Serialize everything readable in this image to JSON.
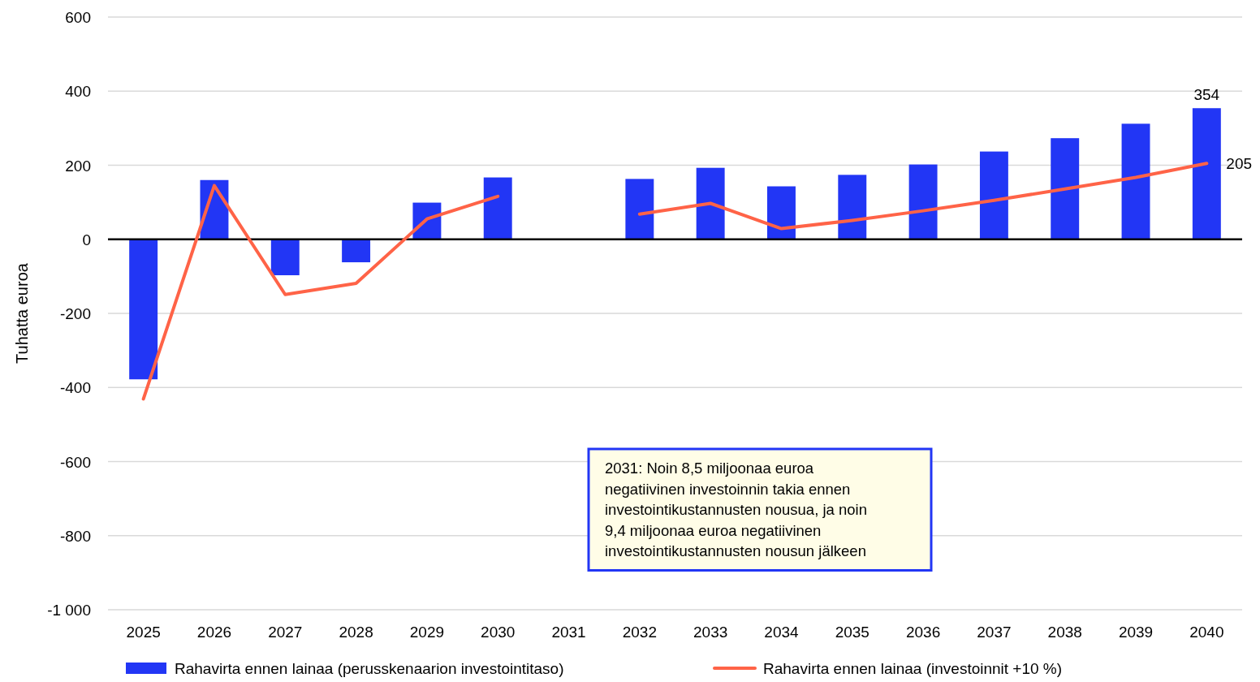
{
  "chart_data": {
    "type": "bar",
    "ylabel": "Tuhatta euroa",
    "categories": [
      "2025",
      "2026",
      "2027",
      "2028",
      "2029",
      "2030",
      "2031",
      "2032",
      "2033",
      "2034",
      "2035",
      "2036",
      "2037",
      "2038",
      "2039",
      "2040"
    ],
    "series": [
      {
        "name": "Rahavirta ennen lainaa (perusskenaarion investointitaso)",
        "color": "#2236f5",
        "values": [
          -378,
          160,
          -97,
          -62,
          99,
          167,
          null,
          163,
          193,
          143,
          174,
          202,
          237,
          273,
          312,
          354
        ],
        "value_labels": [
          null,
          null,
          null,
          null,
          null,
          null,
          null,
          null,
          null,
          null,
          null,
          null,
          null,
          null,
          null,
          "354"
        ]
      },
      {
        "name": "Rahavirta ennen lainaa (investoinnit +10 %)",
        "type": "line",
        "color": "#ff6347",
        "values": [
          -431,
          145,
          -149,
          -119,
          55,
          116,
          null,
          68,
          97,
          29,
          51,
          77,
          105,
          136,
          167,
          205
        ],
        "value_labels": [
          null,
          null,
          null,
          null,
          null,
          null,
          null,
          null,
          null,
          null,
          null,
          null,
          null,
          null,
          null,
          "205"
        ]
      }
    ],
    "ylim": [
      -1000,
      600
    ],
    "yticks": [
      {
        "value": -1000,
        "label": "-1 000"
      },
      -800,
      -600,
      -400,
      -200,
      0,
      200,
      400,
      600
    ],
    "grid": "y",
    "legend": "bottom",
    "annotations": [
      "2031: Noin 8,5 miljoonaa euroa negatiivinen investoinnin takia ennen investointikustannusten nousua, ja noin 9,4 miljoonaa euroa negatiivinen investointikustannusten nousun jälkeen"
    ]
  }
}
